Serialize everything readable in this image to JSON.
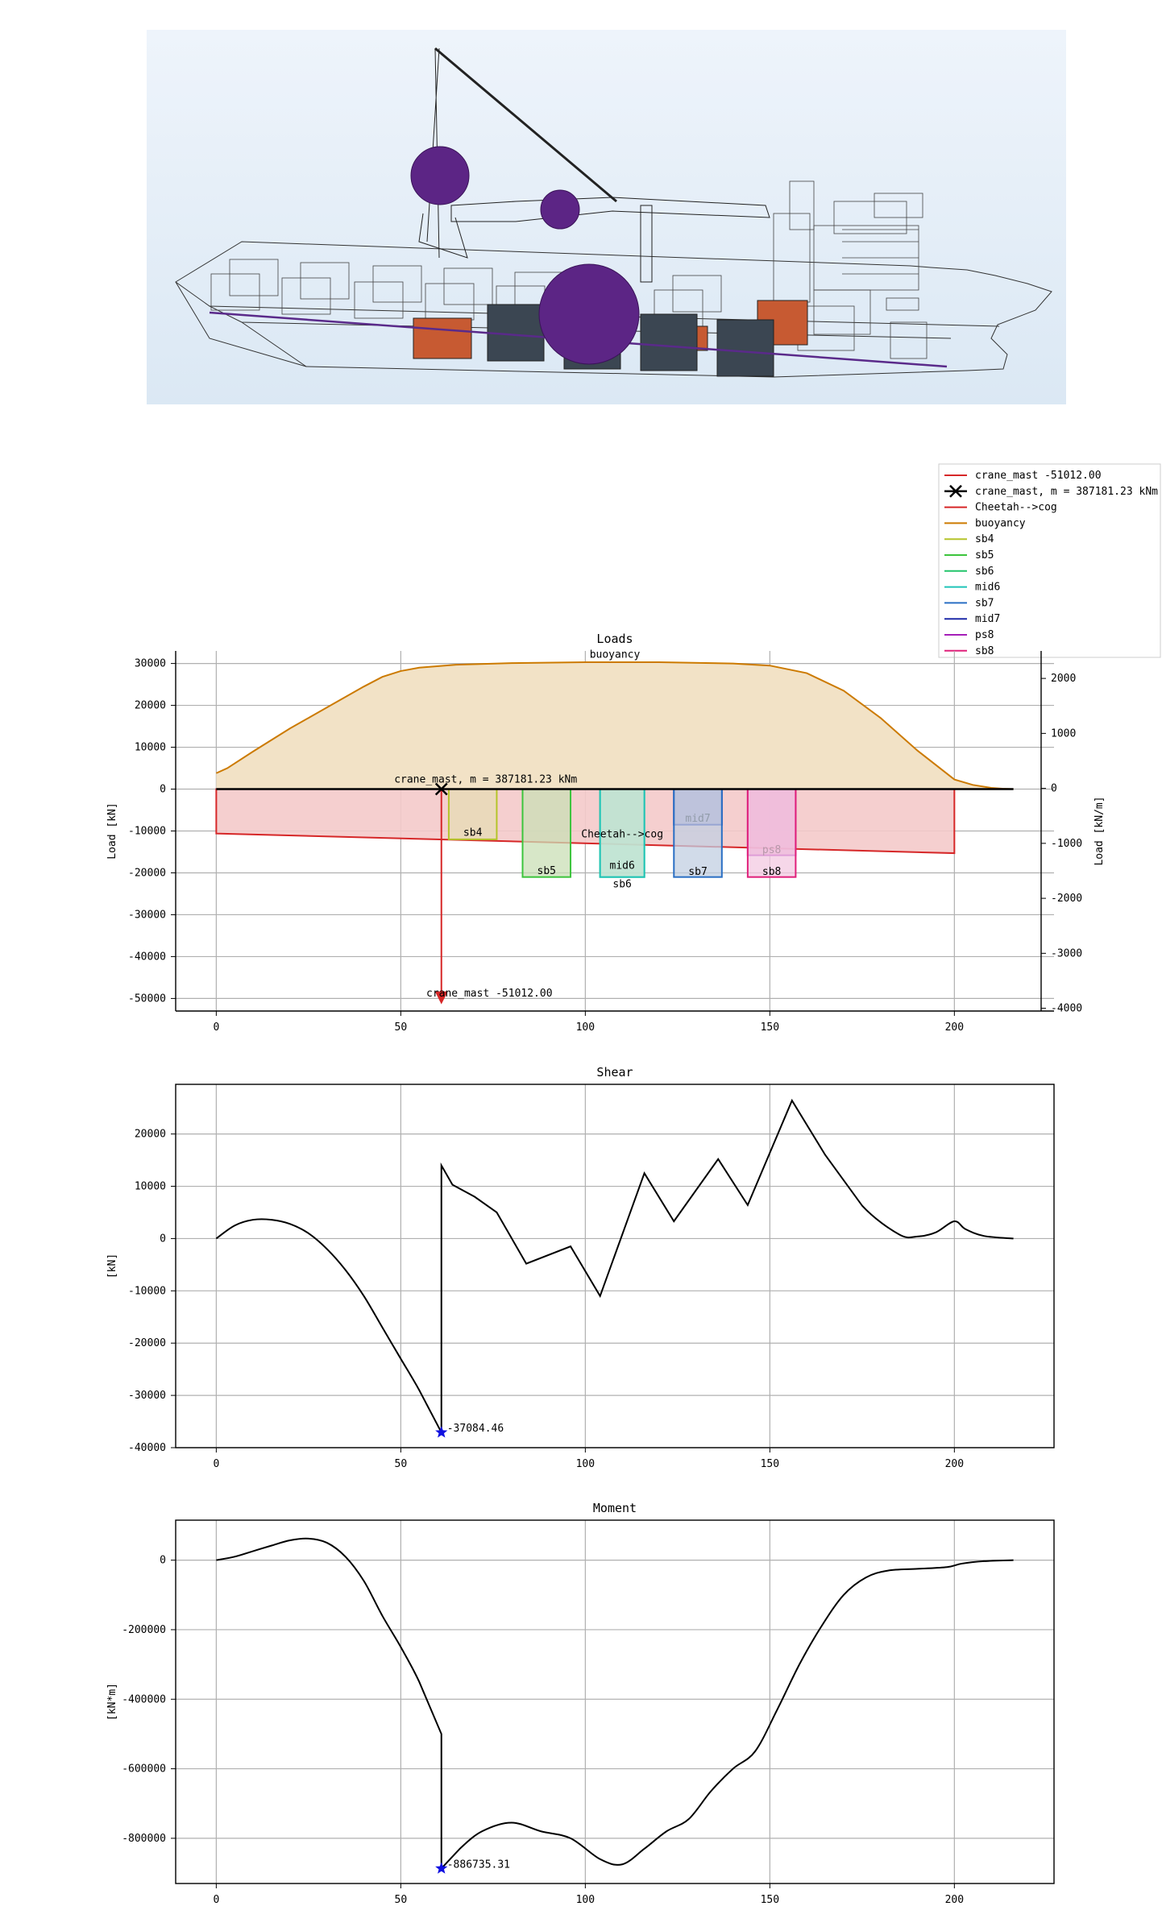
{
  "chart_data": [
    {
      "type": "area",
      "title": "Loads",
      "ylabel": "Load [kN]",
      "ylabel_right": "Load [kN/m]",
      "xlim": [
        -11,
        227
      ],
      "ylim": [
        -53000,
        33000
      ],
      "ylim_right": [
        -4050,
        2500
      ],
      "xticks": [
        0,
        50,
        100,
        150,
        200
      ],
      "yticks": [
        30000,
        20000,
        10000,
        0,
        -10000,
        -20000,
        -30000,
        -40000,
        -50000
      ],
      "yticks_right": [
        2000,
        1000,
        0,
        -1000,
        -2000,
        -3000,
        -4000
      ],
      "grid": true,
      "legend": {
        "placement": "top-right, outside",
        "entries": [
          {
            "label": "  crane_mast -51012.00",
            "color": "#d62728",
            "marker": "line"
          },
          {
            "label": "crane_mast, m = 387181.23 kNm",
            "color": "#000000",
            "marker": "x"
          },
          {
            "label": "Cheetah-->cog",
            "color": "#d62728",
            "marker": "line"
          },
          {
            "label": "buoyancy",
            "color": "#cc7a00",
            "marker": "line"
          },
          {
            "label": "sb4",
            "color": "#b5c42a",
            "marker": "line"
          },
          {
            "label": "sb5",
            "color": "#3cc43c",
            "marker": "line"
          },
          {
            "label": "sb6",
            "color": "#22c46a",
            "marker": "line"
          },
          {
            "label": "mid6",
            "color": "#1fc4b8",
            "marker": "line"
          },
          {
            "label": "sb7",
            "color": "#2a6fc4",
            "marker": "line"
          },
          {
            "label": "mid7",
            "color": "#1e2aa8",
            "marker": "line"
          },
          {
            "label": "ps8",
            "color": "#a51fb8",
            "marker": "line"
          },
          {
            "label": "sb8",
            "color": "#e0207a",
            "marker": "line"
          }
        ]
      },
      "buoyancy": {
        "name": "buoyancy",
        "color": "#cc7a00",
        "fill": "#f2e2c6",
        "x": [
          0,
          3,
          10,
          20,
          30,
          40,
          45,
          50,
          55,
          65,
          80,
          100,
          120,
          140,
          150,
          160,
          170,
          180,
          190,
          200,
          205,
          210,
          213,
          216
        ],
        "y": [
          3800,
          5000,
          9000,
          14500,
          19500,
          24500,
          26800,
          28200,
          29000,
          29700,
          30100,
          30300,
          30300,
          30000,
          29500,
          27700,
          23500,
          17000,
          9200,
          2300,
          1000,
          300,
          100,
          0
        ]
      },
      "weight": {
        "name": "Cheetah-->cog",
        "color": "#d62728",
        "fill": "#f4caca",
        "x": [
          0,
          200
        ],
        "y": [
          -10600,
          -15300
        ]
      },
      "point_load": {
        "name": "crane_mast -51012.00",
        "x": 61,
        "value": -51012.0,
        "color": "#d62728"
      },
      "moment_marker": {
        "name": "crane_mast, m = 387181.23 kNm",
        "x": 61,
        "y": 0
      },
      "cargo_blocks": [
        {
          "name": "sb4",
          "x0": 63,
          "x1": 76,
          "bottom": -12000,
          "label_y": -10400,
          "color": "#b5c42a",
          "fill": "#e6dcb4"
        },
        {
          "name": "sb5",
          "x0": 83,
          "x1": 96,
          "bottom": -21000,
          "label_y": -19500,
          "color": "#3cc43c",
          "fill": "#c9dfb6"
        },
        {
          "name": "sb6",
          "x0": 104,
          "x1": 116,
          "bottom": -21000,
          "label_y": -22700,
          "color": "#22c46a",
          "fill": "#bfe3d2"
        },
        {
          "name": "mid6",
          "x0": 104,
          "x1": 116,
          "bottom": -21000,
          "label_y": -18300,
          "color": "#1fc4b8",
          "fill": "#bfe3d2"
        },
        {
          "name": "mid7",
          "x0": 124,
          "x1": 137,
          "bottom": -8500,
          "label_y": -7000,
          "color": "#1e2aa8",
          "fill": "#9c92c8"
        },
        {
          "name": "sb7",
          "x0": 124,
          "x1": 137,
          "bottom": -21000,
          "label_y": -19700,
          "color": "#2a6fc4",
          "fill": "#c2cfe2"
        },
        {
          "name": "ps8",
          "x0": 144,
          "x1": 157,
          "bottom": -15800,
          "label_y": -14500,
          "color": "#a51fb8",
          "fill": "#e08bc6"
        },
        {
          "name": "sb8",
          "x0": 144,
          "x1": 157,
          "bottom": -21000,
          "label_y": -19700,
          "color": "#e0207a",
          "fill": "#f3c9e1"
        }
      ],
      "annotations": [
        {
          "text": "buoyancy",
          "x": 108,
          "y": 31400
        },
        {
          "text": "crane_mast, m = 387181.23 kNm",
          "x": 73,
          "y": 1500
        },
        {
          "text": "Cheetah-->cog",
          "x": 110,
          "y": -11500
        },
        {
          "text": "crane_mast -51012.00",
          "x": 74,
          "y": -49500
        }
      ]
    },
    {
      "type": "line",
      "title": "Shear",
      "ylabel": "[kN]",
      "xlim": [
        -11,
        227
      ],
      "ylim": [
        -40000,
        29500
      ],
      "xticks": [
        0,
        50,
        100,
        150,
        200
      ],
      "yticks": [
        20000,
        10000,
        0,
        -10000,
        -20000,
        -30000,
        -40000
      ],
      "grid": true,
      "series": [
        {
          "x": [
            0,
            5,
            10,
            15,
            20,
            25,
            30,
            35,
            40,
            45,
            50,
            55,
            61,
            61,
            64,
            70,
            76,
            84,
            96,
            104,
            116,
            124,
            136,
            144,
            156,
            165,
            175,
            185,
            190,
            195,
            200,
            203,
            208,
            216
          ],
          "y": [
            0,
            2500,
            3600,
            3600,
            2800,
            1000,
            -2000,
            -6000,
            -11000,
            -17000,
            -23000,
            -29000,
            -37084,
            14000,
            10300,
            8000,
            5000,
            -4800,
            -1500,
            -11000,
            12500,
            3300,
            15200,
            6400,
            26400,
            16000,
            6300,
            800,
            400,
            1200,
            3300,
            1800,
            500,
            0
          ]
        }
      ],
      "markers": [
        {
          "x": 61,
          "y": -37084.46,
          "label": "-37084.46",
          "color": "#1010e0"
        }
      ]
    },
    {
      "type": "line",
      "title": "Moment",
      "ylabel": "[kN*m]",
      "xlim": [
        -11,
        227
      ],
      "ylim": [
        -930000,
        115000
      ],
      "xticks": [
        0,
        50,
        100,
        150,
        200
      ],
      "yticks": [
        0,
        -200000,
        -400000,
        -600000,
        -800000
      ],
      "grid": true,
      "series": [
        {
          "x": [
            0,
            5,
            10,
            15,
            20,
            25,
            30,
            35,
            40,
            45,
            50,
            55,
            61,
            61,
            66,
            72,
            80,
            88,
            96,
            104,
            110,
            116,
            122,
            128,
            134,
            140,
            146,
            152,
            158,
            164,
            170,
            176,
            182,
            190,
            198,
            202,
            208,
            216
          ],
          "y": [
            0,
            10000,
            26000,
            42000,
            57000,
            62000,
            50000,
            10000,
            -60000,
            -160000,
            -250000,
            -350000,
            -500000,
            -886735,
            -830000,
            -780000,
            -755000,
            -780000,
            -800000,
            -860000,
            -875000,
            -830000,
            -780000,
            -745000,
            -665000,
            -600000,
            -550000,
            -430000,
            -300000,
            -190000,
            -100000,
            -50000,
            -30000,
            -25000,
            -20000,
            -10000,
            -3000,
            0
          ]
        }
      ],
      "markers": [
        {
          "x": 61,
          "y": -886735.31,
          "label": "-886735.31",
          "color": "#1010e0"
        }
      ]
    }
  ]
}
